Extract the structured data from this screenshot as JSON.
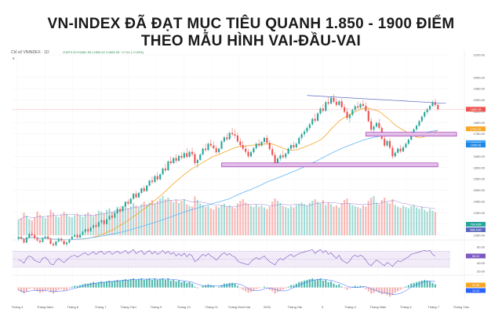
{
  "headline": {
    "line1": "VN-INDEX ĐÃ ĐẠT MỤC TIÊU QUANH 1.850 - 1900 ĐIỂM",
    "line2": "THEO MẪU HÌNH VAI-ĐẦU-VAI"
  },
  "chart_data": {
    "type": "candlestick",
    "symbol_label": "Chỉ số VNINDEX · 1D",
    "ohlc_readout": "O1873.29  H1881.55  L1853.42  C1859.28  −17.51 (−0.93%)",
    "indicator_label": "5",
    "price_axis": {
      "min": 1300,
      "max": 2100,
      "ticks": [
        2100,
        2000,
        1950,
        1900,
        1850,
        1800,
        1750,
        1700,
        1650,
        1600,
        1550,
        1500,
        1450,
        1400,
        1350,
        1300
      ]
    },
    "x_axis_labels": [
      "Tháng 4",
      "Tháng Năm",
      "Tháng 6",
      "Tháng 7",
      "Tháng Tám",
      "Tháng 9",
      "Tháng 10",
      "Tháng 11",
      "Tháng Mười hai",
      "2026",
      "Tháng Hai",
      "3",
      "Tháng 4",
      "Tháng Năm",
      "Tháng 6",
      "Tháng 7",
      "Tháng Tám"
    ],
    "price_labels": {
      "last": "1859.28",
      "ma_fast": "1761.92",
      "ma_slow_a": "1696.58",
      "ma_slow_b": "1695.06",
      "volume_a": "794.42M",
      "volume_b": "588.43M"
    },
    "candles": [
      [
        1283,
        1298,
        1276,
        1292
      ],
      [
        1292,
        1302,
        1280,
        1284
      ],
      [
        1284,
        1290,
        1262,
        1268
      ],
      [
        1268,
        1295,
        1265,
        1290
      ],
      [
        1290,
        1312,
        1286,
        1306
      ],
      [
        1306,
        1318,
        1295,
        1300
      ],
      [
        1300,
        1308,
        1280,
        1287
      ],
      [
        1287,
        1296,
        1270,
        1276
      ],
      [
        1276,
        1283,
        1262,
        1270
      ],
      [
        1270,
        1292,
        1268,
        1288
      ],
      [
        1288,
        1299,
        1282,
        1294
      ],
      [
        1294,
        1301,
        1280,
        1284
      ],
      [
        1284,
        1290,
        1258,
        1262
      ],
      [
        1262,
        1270,
        1248,
        1256
      ],
      [
        1256,
        1276,
        1250,
        1272
      ],
      [
        1272,
        1290,
        1268,
        1285
      ],
      [
        1285,
        1292,
        1270,
        1275
      ],
      [
        1275,
        1280,
        1255,
        1260
      ],
      [
        1260,
        1272,
        1250,
        1268
      ],
      [
        1268,
        1286,
        1262,
        1282
      ],
      [
        1282,
        1298,
        1278,
        1294
      ],
      [
        1294,
        1306,
        1288,
        1300
      ],
      [
        1300,
        1308,
        1285,
        1290
      ],
      [
        1290,
        1305,
        1286,
        1302
      ],
      [
        1302,
        1320,
        1298,
        1316
      ],
      [
        1316,
        1330,
        1310,
        1326
      ],
      [
        1326,
        1332,
        1312,
        1318
      ],
      [
        1318,
        1338,
        1315,
        1334
      ],
      [
        1334,
        1348,
        1328,
        1344
      ],
      [
        1344,
        1352,
        1332,
        1338
      ],
      [
        1338,
        1362,
        1335,
        1358
      ],
      [
        1358,
        1372,
        1350,
        1366
      ],
      [
        1366,
        1370,
        1345,
        1350
      ],
      [
        1350,
        1374,
        1348,
        1370
      ],
      [
        1370,
        1390,
        1366,
        1386
      ],
      [
        1386,
        1398,
        1372,
        1378
      ],
      [
        1378,
        1402,
        1375,
        1398
      ],
      [
        1398,
        1420,
        1394,
        1416
      ],
      [
        1416,
        1430,
        1400,
        1406
      ],
      [
        1406,
        1432,
        1402,
        1428
      ],
      [
        1428,
        1452,
        1424,
        1448
      ],
      [
        1448,
        1460,
        1432,
        1440
      ],
      [
        1440,
        1466,
        1436,
        1462
      ],
      [
        1462,
        1488,
        1456,
        1484
      ],
      [
        1484,
        1496,
        1462,
        1468
      ],
      [
        1468,
        1492,
        1464,
        1488
      ],
      [
        1488,
        1512,
        1482,
        1508
      ],
      [
        1508,
        1520,
        1490,
        1496
      ],
      [
        1496,
        1524,
        1492,
        1520
      ],
      [
        1520,
        1548,
        1516,
        1542
      ],
      [
        1542,
        1560,
        1528,
        1536
      ],
      [
        1536,
        1568,
        1532,
        1562
      ],
      [
        1562,
        1580,
        1540,
        1548
      ],
      [
        1548,
        1574,
        1544,
        1570
      ],
      [
        1570,
        1600,
        1566,
        1596
      ],
      [
        1596,
        1618,
        1580,
        1588
      ],
      [
        1588,
        1632,
        1585,
        1628
      ],
      [
        1628,
        1650,
        1612,
        1620
      ],
      [
        1620,
        1648,
        1616,
        1642
      ],
      [
        1642,
        1660,
        1620,
        1630
      ],
      [
        1630,
        1658,
        1626,
        1652
      ],
      [
        1652,
        1668,
        1636,
        1644
      ],
      [
        1644,
        1672,
        1640,
        1664
      ],
      [
        1664,
        1686,
        1640,
        1648
      ],
      [
        1648,
        1676,
        1644,
        1670
      ],
      [
        1670,
        1688,
        1650,
        1660
      ],
      [
        1660,
        1670,
        1610,
        1620
      ],
      [
        1620,
        1640,
        1600,
        1634
      ],
      [
        1634,
        1664,
        1630,
        1658
      ],
      [
        1658,
        1690,
        1654,
        1684
      ],
      [
        1684,
        1706,
        1670,
        1678
      ],
      [
        1678,
        1712,
        1674,
        1706
      ],
      [
        1706,
        1724,
        1690,
        1698
      ],
      [
        1698,
        1716,
        1680,
        1686
      ],
      [
        1686,
        1700,
        1660,
        1668
      ],
      [
        1668,
        1690,
        1662,
        1684
      ],
      [
        1684,
        1722,
        1680,
        1716
      ],
      [
        1716,
        1742,
        1708,
        1734
      ],
      [
        1734,
        1752,
        1718,
        1726
      ],
      [
        1726,
        1760,
        1722,
        1754
      ],
      [
        1754,
        1776,
        1740,
        1748
      ],
      [
        1748,
        1770,
        1730,
        1742
      ],
      [
        1742,
        1756,
        1710,
        1716
      ],
      [
        1716,
        1730,
        1690,
        1700
      ],
      [
        1700,
        1718,
        1676,
        1684
      ],
      [
        1684,
        1700,
        1660,
        1670
      ],
      [
        1670,
        1684,
        1642,
        1650
      ],
      [
        1650,
        1676,
        1644,
        1668
      ],
      [
        1668,
        1692,
        1662,
        1686
      ],
      [
        1686,
        1712,
        1680,
        1706
      ],
      [
        1706,
        1726,
        1690,
        1698
      ],
      [
        1698,
        1720,
        1692,
        1714
      ],
      [
        1714,
        1738,
        1706,
        1732
      ],
      [
        1732,
        1744,
        1702,
        1710
      ],
      [
        1710,
        1722,
        1676,
        1682
      ],
      [
        1682,
        1694,
        1650,
        1656
      ],
      [
        1656,
        1670,
        1616,
        1622
      ],
      [
        1622,
        1648,
        1612,
        1640
      ],
      [
        1640,
        1662,
        1630,
        1654
      ],
      [
        1654,
        1676,
        1640,
        1646
      ],
      [
        1646,
        1668,
        1638,
        1662
      ],
      [
        1662,
        1690,
        1658,
        1684
      ],
      [
        1684,
        1708,
        1676,
        1700
      ],
      [
        1700,
        1716,
        1682,
        1690
      ],
      [
        1690,
        1712,
        1684,
        1706
      ],
      [
        1706,
        1738,
        1702,
        1732
      ],
      [
        1732,
        1756,
        1722,
        1748
      ],
      [
        1748,
        1770,
        1736,
        1760
      ],
      [
        1760,
        1784,
        1752,
        1776
      ],
      [
        1776,
        1800,
        1766,
        1792
      ],
      [
        1792,
        1822,
        1786,
        1816
      ],
      [
        1816,
        1840,
        1800,
        1808
      ],
      [
        1808,
        1846,
        1804,
        1840
      ],
      [
        1840,
        1870,
        1834,
        1862
      ],
      [
        1862,
        1880,
        1844,
        1852
      ],
      [
        1852,
        1896,
        1848,
        1890
      ],
      [
        1890,
        1912,
        1876,
        1884
      ],
      [
        1884,
        1918,
        1880,
        1910
      ],
      [
        1910,
        1926,
        1884,
        1892
      ],
      [
        1892,
        1908,
        1870,
        1878
      ],
      [
        1878,
        1900,
        1872,
        1894
      ],
      [
        1894,
        1906,
        1862,
        1868
      ],
      [
        1868,
        1882,
        1840,
        1848
      ],
      [
        1848,
        1866,
        1812,
        1820
      ],
      [
        1820,
        1840,
        1800,
        1834
      ],
      [
        1834,
        1862,
        1828,
        1856
      ],
      [
        1856,
        1880,
        1848,
        1872
      ],
      [
        1872,
        1892,
        1858,
        1866
      ],
      [
        1866,
        1888,
        1860,
        1882
      ],
      [
        1882,
        1898,
        1868,
        1874
      ],
      [
        1874,
        1890,
        1846,
        1852
      ],
      [
        1852,
        1862,
        1800,
        1806
      ],
      [
        1806,
        1820,
        1760,
        1768
      ],
      [
        1768,
        1790,
        1756,
        1782
      ],
      [
        1782,
        1806,
        1776,
        1798
      ],
      [
        1798,
        1816,
        1770,
        1776
      ],
      [
        1776,
        1784,
        1720,
        1728
      ],
      [
        1728,
        1740,
        1690,
        1698
      ],
      [
        1698,
        1724,
        1692,
        1718
      ],
      [
        1718,
        1730,
        1680,
        1688
      ],
      [
        1688,
        1700,
        1640,
        1650
      ],
      [
        1650,
        1672,
        1644,
        1666
      ],
      [
        1666,
        1690,
        1660,
        1684
      ],
      [
        1684,
        1700,
        1664,
        1672
      ],
      [
        1672,
        1696,
        1668,
        1690
      ],
      [
        1690,
        1712,
        1684,
        1706
      ],
      [
        1706,
        1730,
        1700,
        1724
      ],
      [
        1724,
        1760,
        1720,
        1754
      ],
      [
        1754,
        1776,
        1744,
        1770
      ],
      [
        1770,
        1792,
        1762,
        1786
      ],
      [
        1786,
        1812,
        1780,
        1806
      ],
      [
        1806,
        1832,
        1800,
        1826
      ],
      [
        1826,
        1852,
        1820,
        1846
      ],
      [
        1846,
        1866,
        1836,
        1858
      ],
      [
        1858,
        1880,
        1850,
        1874
      ],
      [
        1874,
        1898,
        1868,
        1890
      ],
      [
        1890,
        1904,
        1870,
        1878
      ],
      [
        1878,
        1884,
        1853,
        1859
      ]
    ],
    "volume": [
      38,
      42,
      55,
      48,
      40,
      36,
      44,
      58,
      50,
      46,
      42,
      48,
      62,
      55,
      47,
      44,
      50,
      57,
      52,
      46,
      44,
      49,
      53,
      48,
      45,
      51,
      56,
      50,
      47,
      52,
      60,
      58,
      54,
      62,
      66,
      57,
      61,
      70,
      64,
      68,
      74,
      66,
      71,
      79,
      73,
      69,
      76,
      82,
      75,
      80,
      86,
      78,
      84,
      90,
      96,
      88,
      92,
      85,
      81,
      87,
      79,
      84,
      88,
      76,
      72,
      70,
      95,
      86,
      78,
      74,
      69,
      72,
      66,
      63,
      71,
      68,
      74,
      77,
      70,
      73,
      69,
      66,
      78,
      84,
      88,
      80,
      76,
      72,
      69,
      75,
      70,
      73,
      68,
      64,
      70,
      82,
      90,
      84,
      79,
      72,
      69,
      66,
      71,
      68,
      74,
      77,
      80,
      76,
      72,
      79,
      84,
      88,
      82,
      78,
      86,
      74,
      80,
      76,
      70,
      73,
      68,
      79,
      86,
      90,
      78,
      74,
      71,
      69,
      66,
      73,
      70,
      84,
      92,
      96,
      80,
      76,
      86,
      92,
      81,
      78,
      88,
      74,
      70,
      67,
      72,
      69,
      66,
      71,
      74,
      68,
      65,
      70,
      62,
      58,
      64,
      60,
      57
    ],
    "rsi": [
      48,
      46,
      40,
      52,
      58,
      55,
      47,
      44,
      42,
      52,
      55,
      48,
      38,
      36,
      46,
      52,
      46,
      42,
      48,
      54,
      58,
      60,
      55,
      59,
      63,
      66,
      60,
      64,
      68,
      62,
      67,
      70,
      62,
      66,
      70,
      62,
      66,
      70,
      64,
      67,
      72,
      64,
      69,
      74,
      64,
      68,
      72,
      62,
      67,
      72,
      63,
      69,
      62,
      66,
      72,
      64,
      70,
      62,
      67,
      58,
      64,
      58,
      65,
      56,
      63,
      58,
      44,
      48,
      56,
      62,
      58,
      64,
      58,
      54,
      48,
      54,
      62,
      66,
      60,
      64,
      58,
      56,
      46,
      42,
      40,
      38,
      36,
      44,
      50,
      54,
      50,
      54,
      58,
      50,
      44,
      40,
      36,
      46,
      52,
      48,
      54,
      58,
      62,
      56,
      60,
      64,
      66,
      68,
      70,
      72,
      74,
      64,
      70,
      74,
      66,
      72,
      62,
      66,
      58,
      52,
      60,
      48,
      44,
      40,
      46,
      56,
      60,
      56,
      60,
      56,
      48,
      38,
      34,
      42,
      48,
      44,
      38,
      34,
      42,
      38,
      32,
      40,
      46,
      44,
      48,
      52,
      56,
      62,
      64,
      66,
      68,
      70,
      72,
      70,
      72,
      62,
      58
    ],
    "rsi_ticks": [
      "80.00",
      "40.00",
      "20.00"
    ],
    "rsi_readout": "58.24",
    "macd_hist": [
      -4,
      -6,
      -8,
      -5,
      -2,
      -1,
      -3,
      -5,
      -7,
      -6,
      -4,
      -3,
      -6,
      -8,
      -6,
      -3,
      -2,
      -4,
      -3,
      -1,
      1,
      2,
      2,
      3,
      4,
      5,
      5,
      6,
      7,
      6,
      7,
      8,
      7,
      8,
      9,
      8,
      9,
      10,
      9,
      10,
      11,
      10,
      11,
      12,
      10,
      11,
      12,
      10,
      11,
      12,
      10,
      12,
      10,
      11,
      12,
      10,
      12,
      9,
      10,
      8,
      9,
      7,
      8,
      6,
      7,
      5,
      1,
      -1,
      0,
      2,
      3,
      4,
      3,
      2,
      0,
      1,
      3,
      5,
      5,
      6,
      6,
      5,
      2,
      -1,
      -3,
      -5,
      -7,
      -6,
      -4,
      -2,
      -1,
      0,
      1,
      -1,
      -3,
      -5,
      -8,
      -6,
      -4,
      -3,
      -1,
      1,
      3,
      3,
      5,
      7,
      8,
      9,
      10,
      11,
      12,
      10,
      11,
      12,
      9,
      10,
      7,
      8,
      5,
      3,
      4,
      1,
      -1,
      -3,
      -1,
      1,
      2,
      1,
      2,
      1,
      -2,
      -5,
      -8,
      -7,
      -5,
      -7,
      -9,
      -8,
      -10,
      -12,
      -10,
      -7,
      -5,
      -3,
      -1,
      1,
      3,
      5,
      6,
      7,
      8,
      9,
      10,
      9,
      8,
      6,
      4
    ],
    "macd_readout_a": "22.88",
    "macd_readout_b": "14.13"
  }
}
